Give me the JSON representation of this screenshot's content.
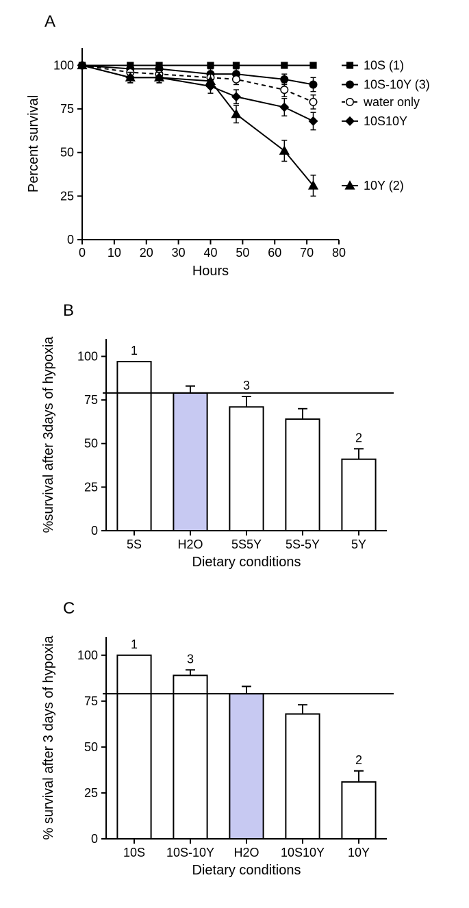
{
  "panelA": {
    "label": "A",
    "type": "line",
    "xlabel": "Hours",
    "ylabel": "Percent survival",
    "label_fontsize": 20,
    "tick_fontsize": 18,
    "xlim": [
      0,
      80
    ],
    "ylim": [
      0,
      110
    ],
    "xticks": [
      0,
      10,
      20,
      30,
      40,
      50,
      60,
      70,
      80
    ],
    "yticks": [
      0,
      25,
      50,
      75,
      100
    ],
    "line_width": 2,
    "marker_size": 7,
    "series": [
      {
        "name": "10S (1)",
        "marker": "square",
        "dash": "solid",
        "color": "#000000",
        "x": [
          0,
          15,
          24,
          40,
          48,
          63,
          72
        ],
        "y": [
          100,
          100,
          100,
          100,
          100,
          100,
          100
        ],
        "yerr": [
          0,
          0,
          0,
          0,
          0,
          0,
          0
        ]
      },
      {
        "name": "10S-10Y (3)",
        "marker": "circle",
        "dash": "solid",
        "color": "#000000",
        "x": [
          0,
          15,
          24,
          40,
          48,
          63,
          72
        ],
        "y": [
          100,
          98,
          98,
          95,
          95,
          92,
          89
        ],
        "yerr": [
          0,
          2,
          2,
          3,
          3,
          3,
          4
        ]
      },
      {
        "name": "water only",
        "marker": "open-circle",
        "dash": "dashed",
        "color": "#000000",
        "x": [
          0,
          15,
          24,
          40,
          48,
          63,
          72
        ],
        "y": [
          100,
          96,
          95,
          93,
          92,
          86,
          79
        ],
        "yerr": [
          0,
          2,
          2,
          3,
          3,
          4,
          4
        ]
      },
      {
        "name": "10S10Y",
        "marker": "diamond",
        "dash": "solid",
        "color": "#000000",
        "x": [
          0,
          15,
          24,
          40,
          48,
          63,
          72
        ],
        "y": [
          100,
          93,
          93,
          88,
          82,
          76,
          68
        ],
        "yerr": [
          0,
          3,
          3,
          4,
          4,
          5,
          5
        ]
      },
      {
        "name": "10Y (2)",
        "marker": "triangle",
        "dash": "solid",
        "color": "#000000",
        "x": [
          0,
          15,
          24,
          40,
          48,
          63,
          72
        ],
        "y": [
          100,
          93,
          93,
          91,
          72,
          51,
          31
        ],
        "yerr": [
          0,
          3,
          3,
          4,
          5,
          6,
          6
        ]
      }
    ],
    "legend_fontsize": 18
  },
  "panelB": {
    "label": "B",
    "type": "bar",
    "xlabel": "Dietary conditions",
    "ylabel": "%survival after 3days of hypoxia",
    "label_fontsize": 20,
    "tick_fontsize": 18,
    "ylim": [
      0,
      110
    ],
    "yticks": [
      0,
      25,
      50,
      75,
      100
    ],
    "bar_width": 0.6,
    "stroke": "#000000",
    "stroke_width": 2,
    "ref_line": 79,
    "categories": [
      "5S",
      "H2O",
      "5S5Y",
      "5S-5Y",
      "5Y"
    ],
    "values": [
      97,
      79,
      71,
      64,
      41
    ],
    "errors": [
      0,
      4,
      6,
      6,
      6
    ],
    "fills": [
      "#ffffff",
      "#c7c9f2",
      "#ffffff",
      "#ffffff",
      "#ffffff"
    ],
    "annotations": {
      "0": "1",
      "2": "3",
      "4": "2"
    }
  },
  "panelC": {
    "label": "C",
    "type": "bar",
    "xlabel": "Dietary conditions",
    "ylabel": "% survival after 3 days of hypoxia",
    "label_fontsize": 20,
    "tick_fontsize": 18,
    "ylim": [
      0,
      110
    ],
    "yticks": [
      0,
      25,
      50,
      75,
      100
    ],
    "bar_width": 0.6,
    "stroke": "#000000",
    "stroke_width": 2,
    "ref_line": 79,
    "categories": [
      "10S",
      "10S-10Y",
      "H2O",
      "10S10Y",
      "10Y"
    ],
    "values": [
      100,
      89,
      79,
      68,
      31
    ],
    "errors": [
      0,
      3,
      4,
      5,
      6
    ],
    "fills": [
      "#ffffff",
      "#ffffff",
      "#c7c9f2",
      "#ffffff",
      "#ffffff"
    ],
    "annotations": {
      "0": "1",
      "1": "3",
      "4": "2"
    }
  },
  "colors": {
    "axis": "#000000",
    "background": "#ffffff"
  }
}
